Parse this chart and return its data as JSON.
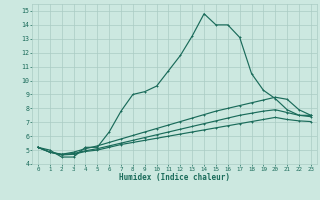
{
  "xlabel": "Humidex (Indice chaleur)",
  "bg_color": "#cce8e0",
  "line_color": "#1a6b5a",
  "grid_color": "#aaccc4",
  "xlim": [
    -0.5,
    23.5
  ],
  "ylim": [
    4,
    15.5
  ],
  "xticks": [
    0,
    1,
    2,
    3,
    4,
    5,
    6,
    7,
    8,
    9,
    10,
    11,
    12,
    13,
    14,
    15,
    16,
    17,
    18,
    19,
    20,
    21,
    22,
    23
  ],
  "yticks": [
    4,
    5,
    6,
    7,
    8,
    9,
    10,
    11,
    12,
    13,
    14,
    15
  ],
  "series1_x": [
    0,
    1,
    2,
    3,
    4,
    5,
    6,
    7,
    8,
    9,
    10,
    11,
    12,
    13,
    14,
    15,
    16,
    17,
    18,
    19,
    20,
    21,
    22,
    23
  ],
  "series1_y": [
    5.2,
    5.0,
    4.5,
    4.5,
    5.2,
    5.2,
    6.3,
    7.8,
    9.0,
    9.2,
    9.6,
    10.7,
    11.8,
    13.2,
    14.8,
    14.0,
    14.0,
    13.1,
    10.5,
    9.3,
    8.7,
    7.9,
    7.5,
    7.5
  ],
  "series2_x": [
    0,
    1,
    2,
    3,
    4,
    5,
    6,
    7,
    8,
    9,
    10,
    11,
    12,
    13,
    14,
    15,
    16,
    17,
    18,
    19,
    20,
    21,
    22,
    23
  ],
  "series2_y": [
    5.2,
    4.85,
    4.7,
    4.85,
    5.1,
    5.3,
    5.55,
    5.8,
    6.05,
    6.3,
    6.55,
    6.8,
    7.05,
    7.3,
    7.55,
    7.8,
    8.0,
    8.2,
    8.4,
    8.6,
    8.8,
    8.65,
    7.9,
    7.5
  ],
  "series3_x": [
    0,
    1,
    2,
    3,
    4,
    5,
    6,
    7,
    8,
    9,
    10,
    11,
    12,
    13,
    14,
    15,
    16,
    17,
    18,
    19,
    20,
    21,
    22,
    23
  ],
  "series3_y": [
    5.2,
    4.85,
    4.7,
    4.75,
    4.95,
    5.1,
    5.3,
    5.5,
    5.7,
    5.9,
    6.1,
    6.3,
    6.5,
    6.7,
    6.9,
    7.1,
    7.3,
    7.5,
    7.65,
    7.8,
    7.9,
    7.7,
    7.5,
    7.4
  ],
  "series4_x": [
    0,
    1,
    2,
    3,
    4,
    5,
    6,
    7,
    8,
    9,
    10,
    11,
    12,
    13,
    14,
    15,
    16,
    17,
    18,
    19,
    20,
    21,
    22,
    23
  ],
  "series4_y": [
    5.2,
    4.85,
    4.65,
    4.7,
    4.9,
    5.0,
    5.2,
    5.4,
    5.55,
    5.7,
    5.85,
    6.0,
    6.15,
    6.3,
    6.45,
    6.6,
    6.75,
    6.9,
    7.05,
    7.2,
    7.35,
    7.2,
    7.1,
    7.05
  ]
}
